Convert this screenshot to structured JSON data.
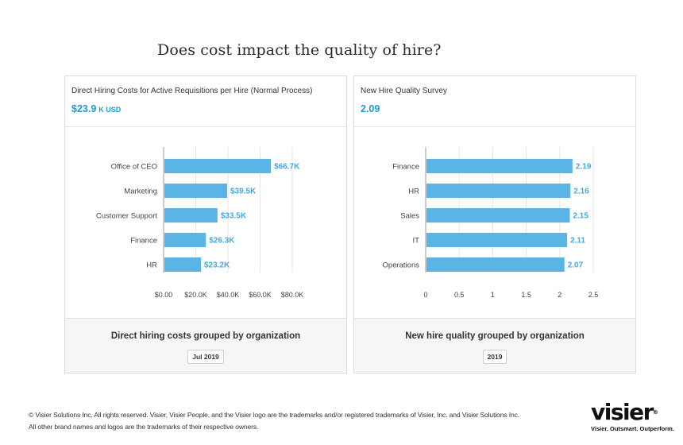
{
  "page": {
    "title": "Does cost impact the quality of hire?"
  },
  "left_card": {
    "metric_name": "Direct Hiring Costs for Active Requisitions per Hire (Normal Process)",
    "metric_value": "$23.9",
    "metric_unit": "K USD",
    "footer_title": "Direct hiring costs grouped by organization",
    "footer_badge": "Jul 2019"
  },
  "right_card": {
    "metric_name": "New Hire Quality Survey",
    "metric_value": "2.09",
    "footer_title": "New hire quality grouped by organization",
    "footer_badge": "2019"
  },
  "chart_data": [
    {
      "type": "bar",
      "orientation": "horizontal",
      "categories": [
        "Office of CEO",
        "Marketing",
        "Customer Support",
        "Finance",
        "HR"
      ],
      "values": [
        66.7,
        39.5,
        33.5,
        26.3,
        23.2
      ],
      "value_labels": [
        "$66.7K",
        "$39.5K",
        "$33.5K",
        "$26.3K",
        "$23.2K"
      ],
      "ticks": [
        0,
        20,
        40,
        60,
        80
      ],
      "tick_labels": [
        "$0.00",
        "$20.0K",
        "$40.0K",
        "$60.0K",
        "$80.0K"
      ],
      "xlim": [
        0,
        80
      ],
      "color": "#5ab4e6",
      "label_color": "#45a8de"
    },
    {
      "type": "bar",
      "orientation": "horizontal",
      "categories": [
        "Finance",
        "HR",
        "Sales",
        "IT",
        "Operations"
      ],
      "values": [
        2.19,
        2.16,
        2.15,
        2.11,
        2.07
      ],
      "value_labels": [
        "2.19",
        "2.16",
        "2.15",
        "2.11",
        "2.07"
      ],
      "ticks": [
        0,
        0.5,
        1,
        1.5,
        2,
        2.5
      ],
      "tick_labels": [
        "0",
        "0.5",
        "1",
        "1.5",
        "2",
        "2.5"
      ],
      "xlim": [
        0,
        2.5
      ],
      "color": "#5ab4e6",
      "label_color": "#45a8de"
    }
  ],
  "footer": {
    "legal_line1": "© Visier Solutions Inc. All rights reserved. Visier, Visier People, and the Visier logo are the trademarks and/or registered trademarks of Visier, Inc. and Visier Solutions Inc.",
    "legal_line2": "All other brand names and logos are the trademarks of their respective owners."
  },
  "logo": {
    "wordmark": "visier",
    "tagline": "Visier. Outsmart. Outperform.",
    "reg_mark": "®"
  }
}
